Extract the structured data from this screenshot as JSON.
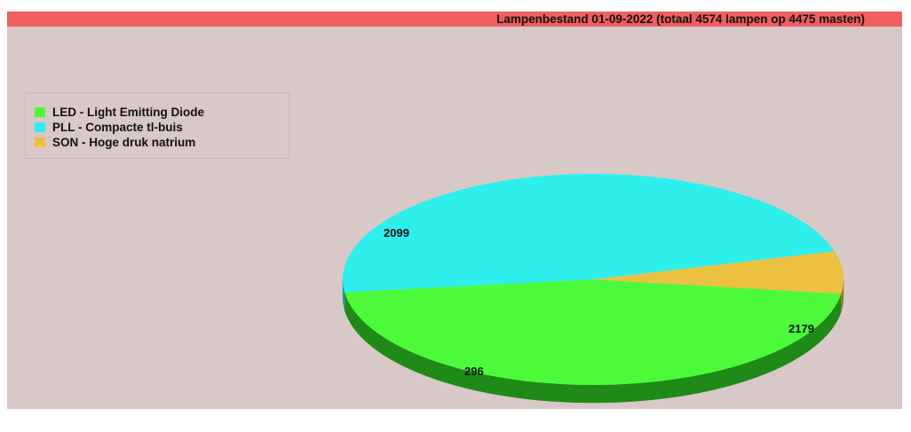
{
  "chart_data": {
    "type": "pie",
    "title": "Lampenbestand 01-09-2022 (totaal 4574 lampen op 4475 masten)",
    "slices": [
      {
        "label": "LED - Light Emitting Diode",
        "value": 2099,
        "color": "#4dfa3a",
        "side_color": "#1f8a17"
      },
      {
        "label": "PLL - Compacte tl-buis",
        "value": 2179,
        "color": "#2fefec",
        "side_color": "#1f9c9a"
      },
      {
        "label": "SON - Hoge druk natrium",
        "value": 296,
        "color": "#ecc140",
        "side_color": "#9a7a22"
      }
    ],
    "legend_position": "top-left",
    "style": "3d"
  },
  "colors": {
    "background": "#d8c8c8",
    "title_bar": "#f05f5f"
  }
}
